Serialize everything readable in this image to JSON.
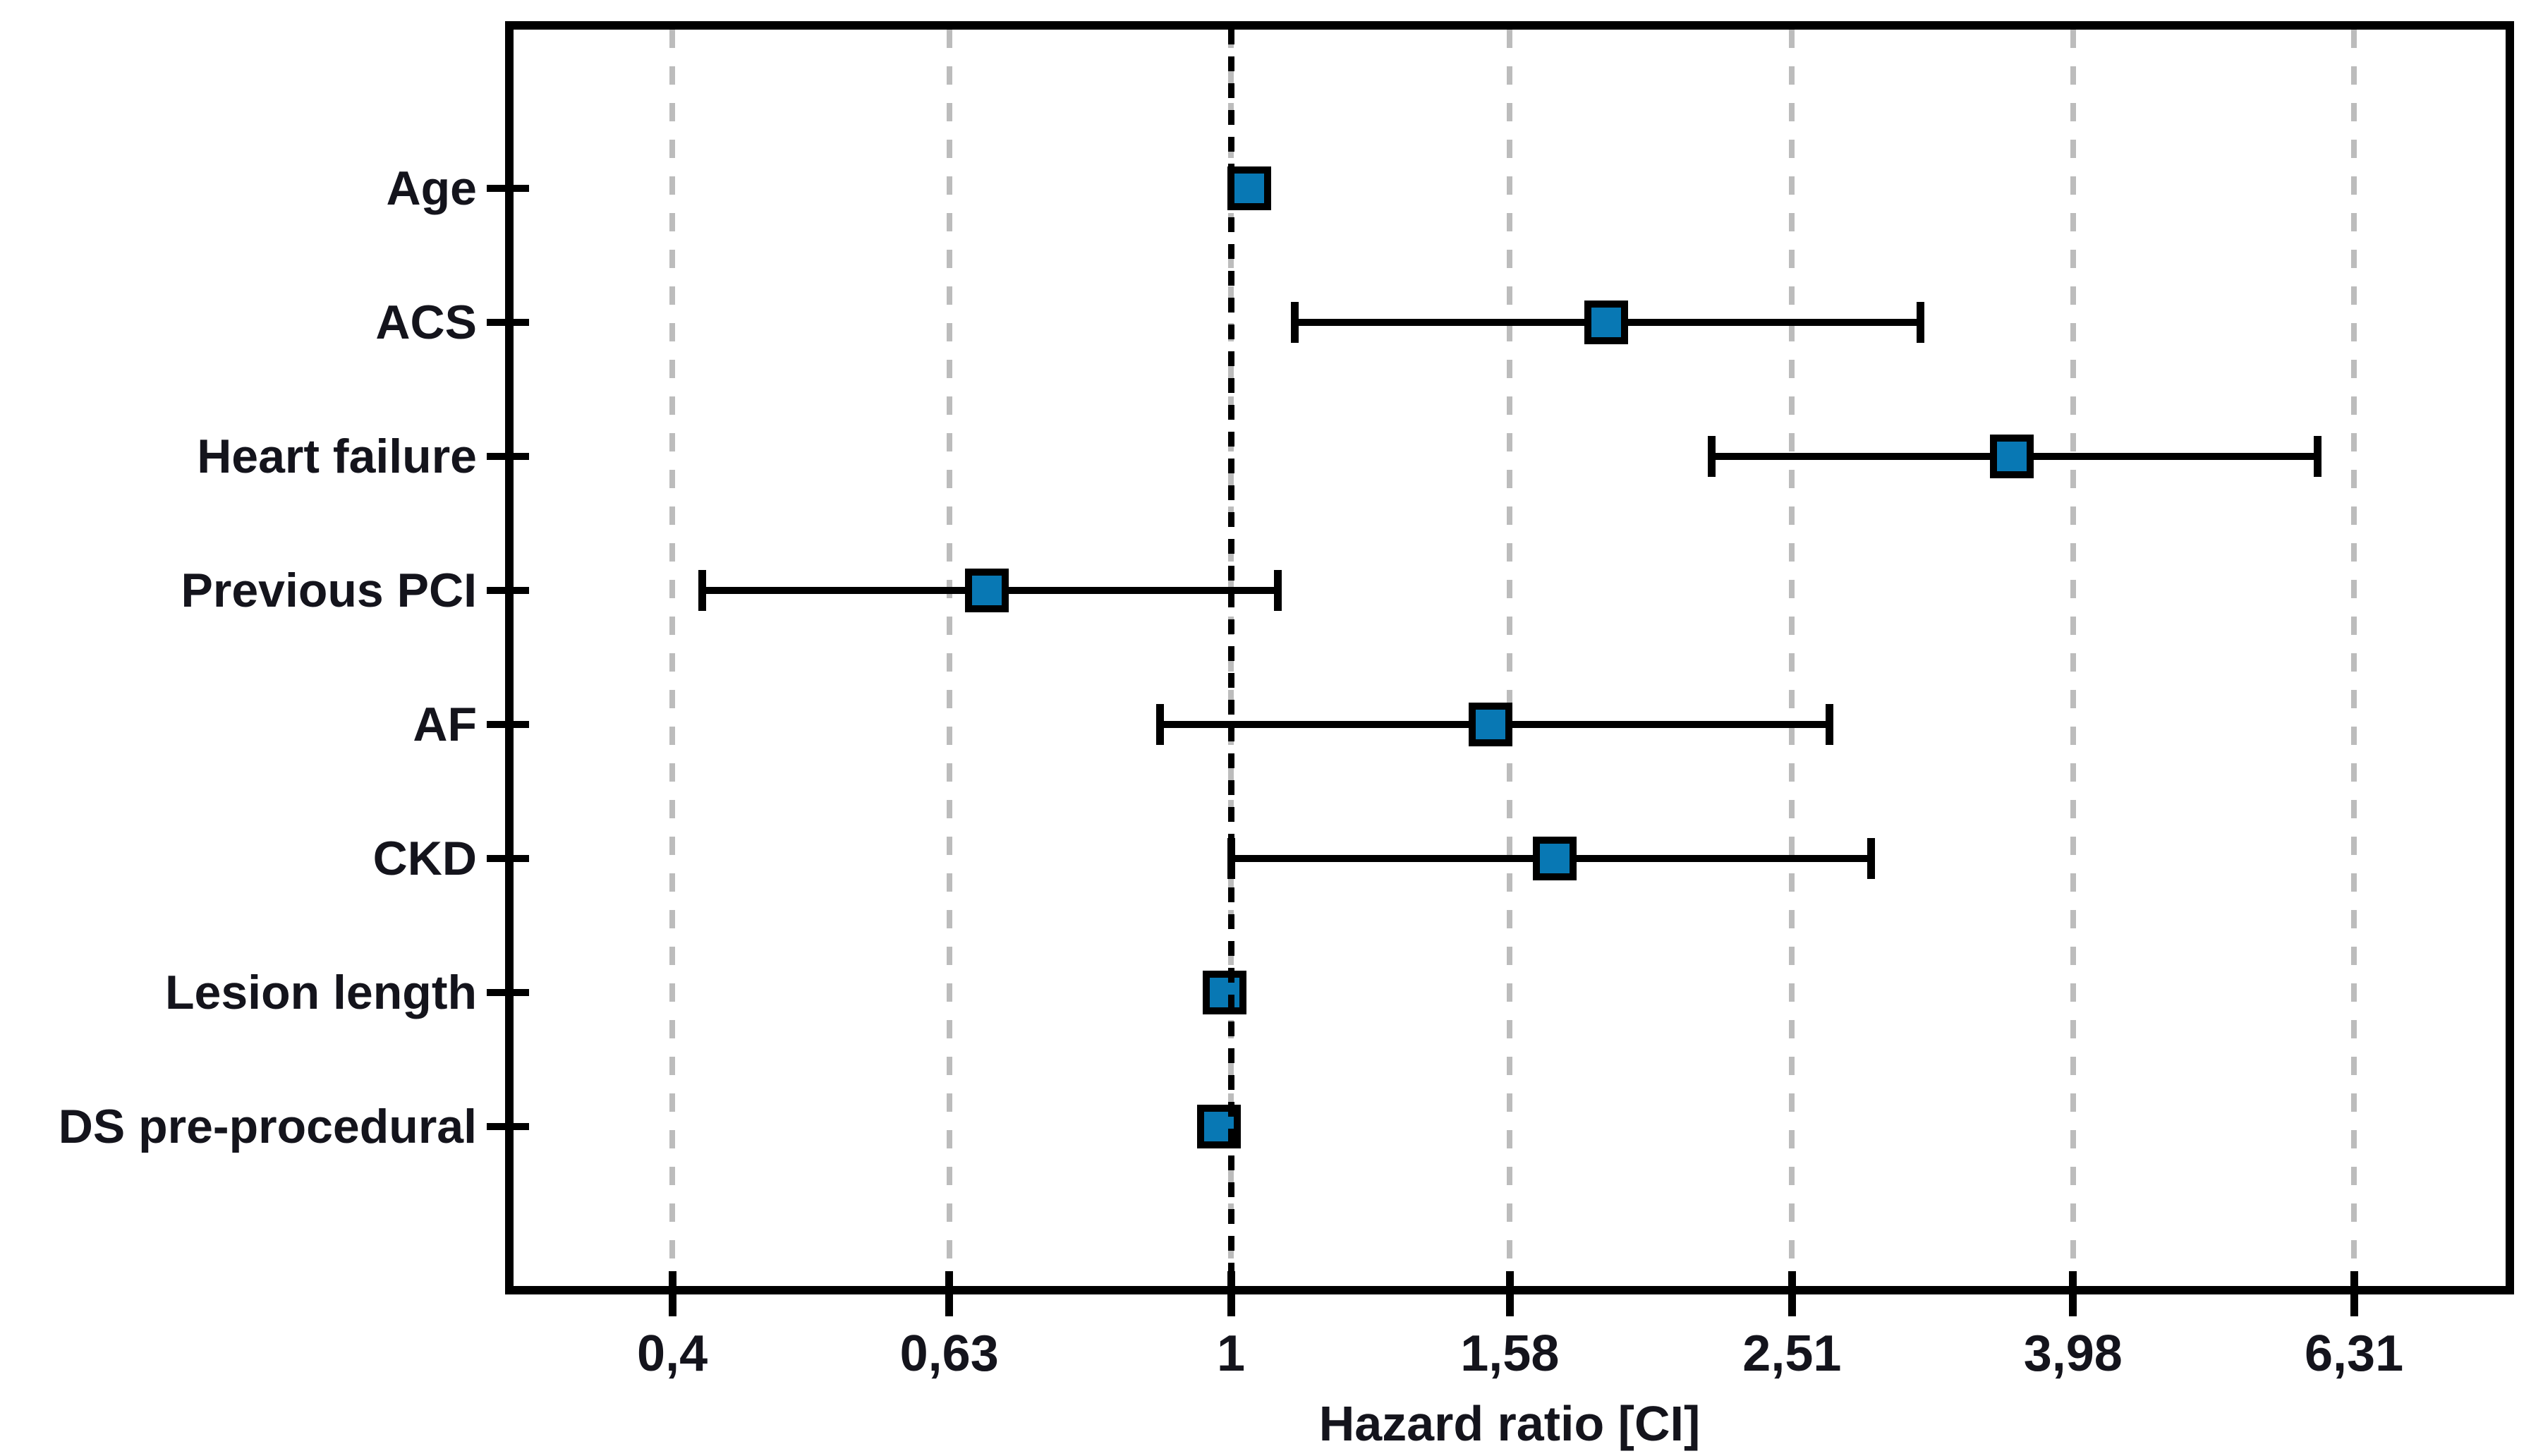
{
  "chart_data": {
    "type": "scatter",
    "subtype": "forest-plot",
    "title": "",
    "xlabel": "Hazard ratio [CI]",
    "x_scale": "log10",
    "x_axis_range": [
      0.32,
      8.5
    ],
    "x_ticks": [
      0.4,
      0.63,
      1,
      1.58,
      2.51,
      3.98,
      6.31
    ],
    "x_tick_labels": [
      "0,4",
      "0,63",
      "1",
      "1,58",
      "2,51",
      "3,98",
      "6,31"
    ],
    "reference_line": 1,
    "grid": "vertical-dashed",
    "legend": "none",
    "marker_color": "#0878b4",
    "grid_color": "#bcbcbc",
    "rows": [
      {
        "label": "Age",
        "hr": 1.03,
        "ci_low": null,
        "ci_high": null,
        "ci_visible": false,
        "ci_note": "CI within marker"
      },
      {
        "label": "ACS",
        "hr": 1.85,
        "ci_low": 1.11,
        "ci_high": 3.1,
        "ci_visible": true
      },
      {
        "label": "Heart failure",
        "hr": 3.6,
        "ci_low": 2.2,
        "ci_high": 5.95,
        "ci_visible": true
      },
      {
        "label": "Previous PCI",
        "hr": 0.67,
        "ci_low": 0.42,
        "ci_high": 1.08,
        "ci_visible": true
      },
      {
        "label": "AF",
        "hr": 1.53,
        "ci_low": 0.89,
        "ci_high": 2.67,
        "ci_visible": true
      },
      {
        "label": "CKD",
        "hr": 1.7,
        "ci_low": 1.0,
        "ci_high": 2.86,
        "ci_visible": true
      },
      {
        "label": "Lesion length",
        "hr": 0.99,
        "ci_low": null,
        "ci_high": null,
        "ci_visible": false,
        "ci_note": "CI within marker"
      },
      {
        "label": "DS pre-procedural",
        "hr": 0.98,
        "ci_low": null,
        "ci_high": null,
        "ci_visible": false,
        "ci_note": "CI within marker"
      }
    ]
  },
  "colors": {
    "marker_fill": "#0878b4",
    "marker_border": "#000000",
    "grid_gray": "#bcbcbc",
    "reference_black": "#000000",
    "text": "#14141c",
    "background": "#ffffff"
  }
}
